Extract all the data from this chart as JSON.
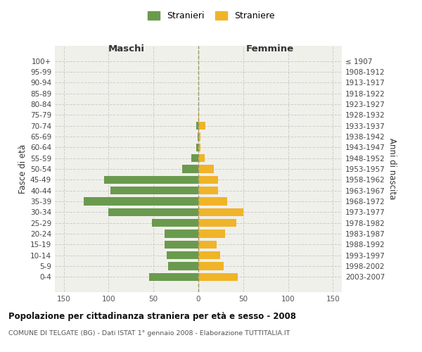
{
  "age_groups": [
    "100+",
    "95-99",
    "90-94",
    "85-89",
    "80-84",
    "75-79",
    "70-74",
    "65-69",
    "60-64",
    "55-59",
    "50-54",
    "45-49",
    "40-44",
    "35-39",
    "30-34",
    "25-29",
    "20-24",
    "15-19",
    "10-14",
    "5-9",
    "0-4"
  ],
  "birth_years": [
    "≤ 1907",
    "1908-1912",
    "1913-1917",
    "1918-1922",
    "1923-1927",
    "1928-1932",
    "1933-1937",
    "1938-1942",
    "1943-1947",
    "1948-1952",
    "1953-1957",
    "1958-1962",
    "1963-1967",
    "1968-1972",
    "1973-1977",
    "1978-1982",
    "1983-1987",
    "1988-1992",
    "1993-1997",
    "1998-2002",
    "2003-2007"
  ],
  "maschi": [
    0,
    0,
    0,
    0,
    0,
    0,
    2,
    1,
    2,
    8,
    18,
    105,
    98,
    128,
    100,
    52,
    38,
    38,
    35,
    34,
    55
  ],
  "femmine": [
    0,
    0,
    0,
    0,
    0,
    1,
    8,
    2,
    2,
    7,
    17,
    22,
    22,
    32,
    50,
    42,
    30,
    20,
    24,
    28,
    44
  ],
  "maschi_color": "#6a9a4e",
  "femmine_color": "#f0b429",
  "bar_height": 0.75,
  "xlim": 160,
  "xlabel_left": "Maschi",
  "xlabel_right": "Femmine",
  "ylabel_left": "Fasce di età",
  "ylabel_right": "Anni di nascita",
  "legend_maschi": "Stranieri",
  "legend_femmine": "Straniere",
  "title": "Popolazione per cittadinanza straniera per età e sesso - 2008",
  "subtitle": "COMUNE DI TELGATE (BG) - Dati ISTAT 1° gennaio 2008 - Elaborazione TUTTITALIA.IT",
  "bg_color": "#f0f0eb",
  "grid_color": "#cccccc"
}
